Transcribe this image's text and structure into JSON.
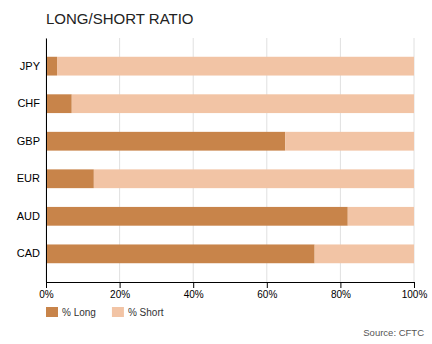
{
  "chart_data": {
    "type": "bar",
    "orientation": "horizontal",
    "stacked": true,
    "title": "LONG/SHORT RATIO",
    "categories": [
      "JPY",
      "CHF",
      "GBP",
      "EUR",
      "AUD",
      "CAD"
    ],
    "series": [
      {
        "name": "% Long",
        "color": "#c8844a",
        "values": [
          3,
          7,
          65,
          13,
          82,
          73
        ]
      },
      {
        "name": "% Short",
        "color": "#f2c4a5",
        "values": [
          97,
          93,
          35,
          87,
          18,
          27
        ]
      }
    ],
    "xlim": [
      0,
      100
    ],
    "xticks": [
      {
        "value": 0,
        "label": "0%"
      },
      {
        "value": 20,
        "label": "20%"
      },
      {
        "value": 40,
        "label": "40%"
      },
      {
        "value": 60,
        "label": "60%"
      },
      {
        "value": 80,
        "label": "80%"
      },
      {
        "value": 100,
        "label": "100%"
      }
    ],
    "grid": true,
    "legend": "bottom",
    "annotations": [
      "Source: CFTC"
    ]
  }
}
